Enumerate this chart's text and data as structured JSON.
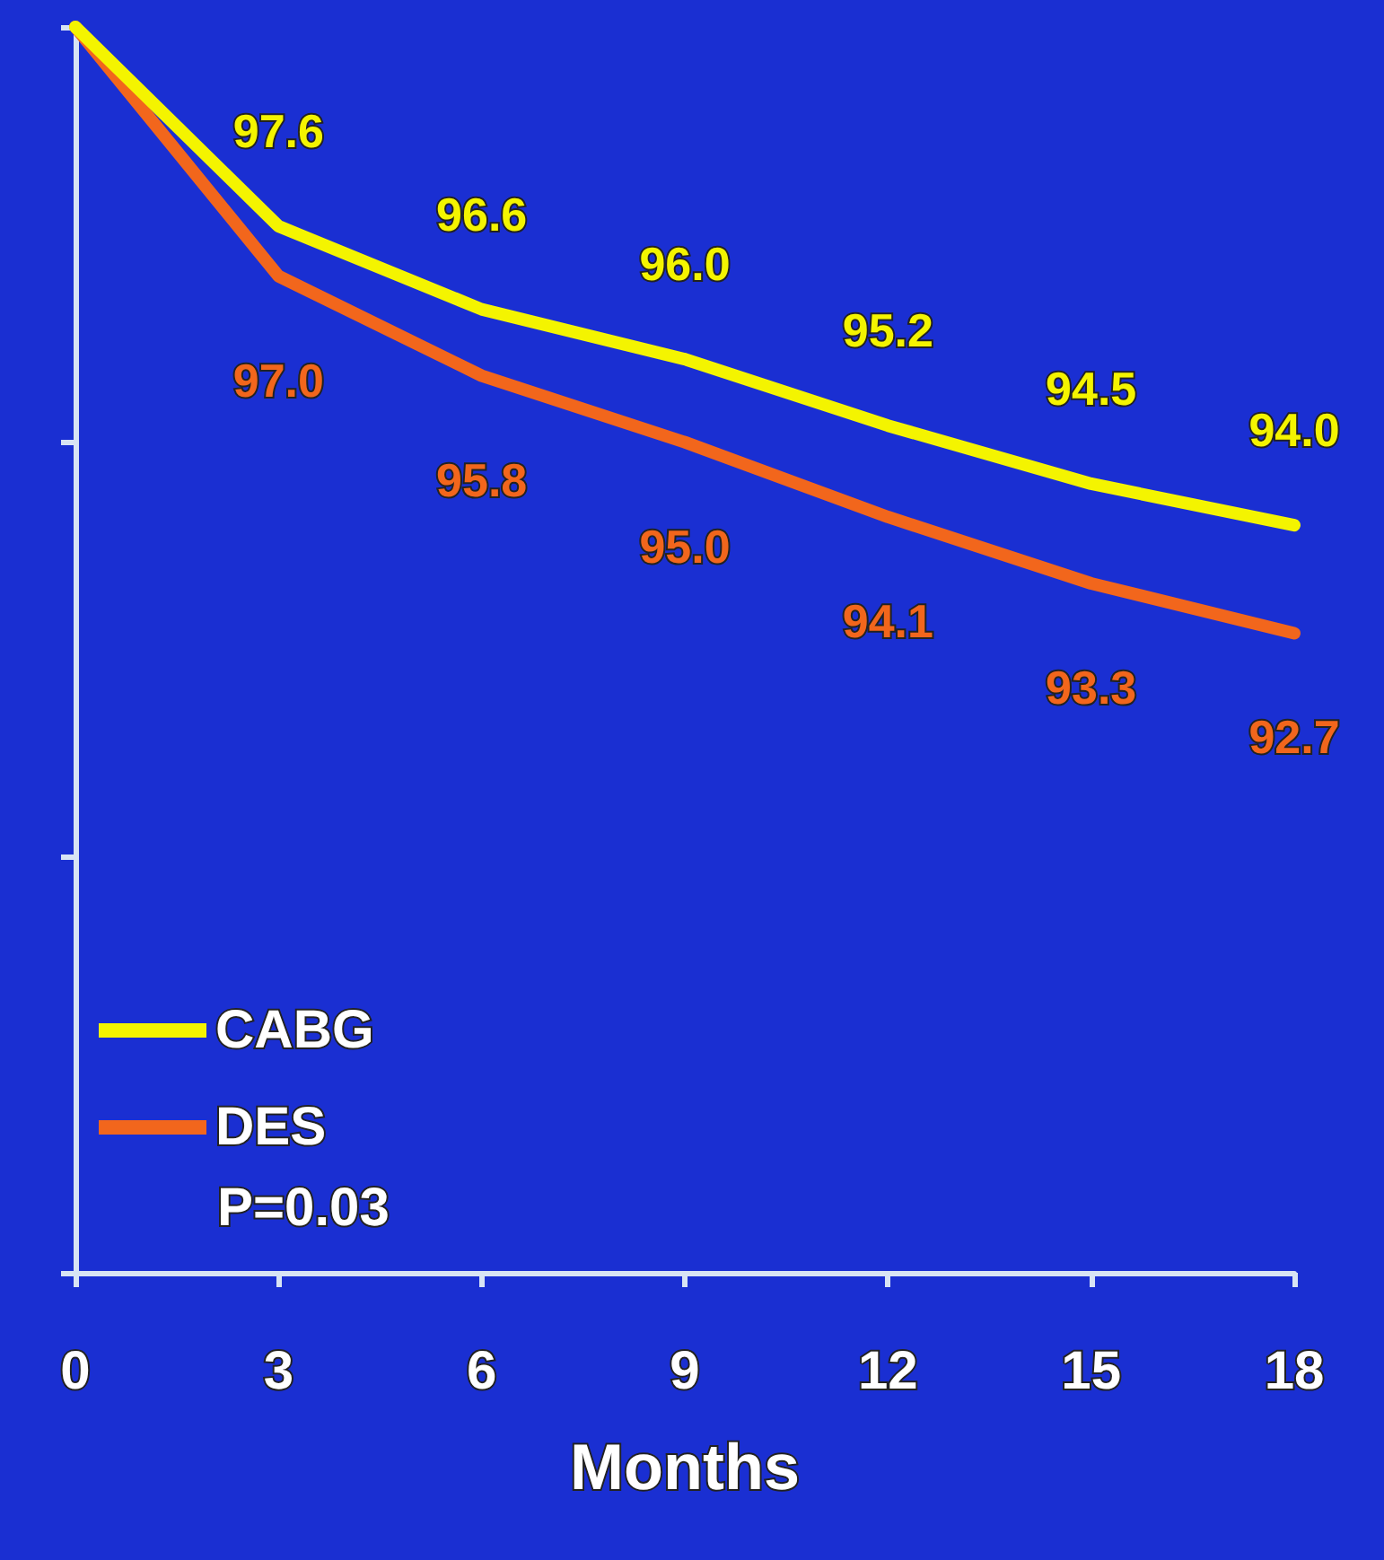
{
  "chart_data": {
    "type": "line",
    "xlabel": "Months",
    "x": [
      0,
      3,
      6,
      9,
      12,
      15,
      18
    ],
    "xlim": [
      0,
      18
    ],
    "xticks": [
      0,
      3,
      6,
      9,
      12,
      15,
      18
    ],
    "ylim": [
      85,
      100
    ],
    "yticks": [
      {
        "value": 85,
        "label": null
      },
      {
        "value": 90,
        "label": null
      },
      {
        "value": 95,
        "label": null
      },
      {
        "value": 100,
        "label": null
      }
    ],
    "tick_labels": "x",
    "grid": false,
    "legend": "bottom left",
    "marker": "none",
    "line_style": "solid",
    "series": [
      {
        "name": "CABG",
        "color": "#f4f400",
        "values": [
          100,
          97.6,
          96.6,
          96.0,
          95.2,
          94.5,
          94.0
        ],
        "value_labels": [
          null,
          "97.6",
          "96.6",
          "96.0",
          "95.2",
          "94.5",
          "94.0"
        ]
      },
      {
        "name": "DES",
        "color": "#f2661c",
        "values": [
          100,
          97.0,
          95.8,
          95.0,
          94.1,
          93.3,
          92.7
        ],
        "value_labels": [
          null,
          "97.0",
          "95.8",
          "95.0",
          "94.1",
          "93.3",
          "92.7"
        ]
      }
    ],
    "annotations": [
      "P=0.03"
    ]
  }
}
